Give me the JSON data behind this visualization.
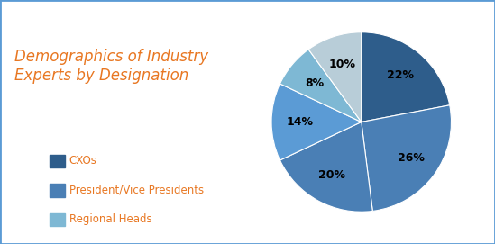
{
  "title": "Demographics of Industry\nExperts by Designation",
  "title_color": "#E87722",
  "slices": [
    22,
    26,
    20,
    14,
    8,
    10
  ],
  "labels": [
    "22%",
    "26%",
    "20%",
    "14%",
    "8%",
    "10%"
  ],
  "colors": [
    "#2E5D8B",
    "#4A7FB5",
    "#4A7FB5",
    "#5B9BD5",
    "#7EB8D4",
    "#B8CDD8"
  ],
  "legend_labels": [
    "CXOs",
    "President/Vice Presidents",
    "Regional Heads"
  ],
  "legend_colors": [
    "#2E5D8B",
    "#4A7FB5",
    "#7EB8D4"
  ],
  "legend_text_color": "#E87722",
  "background_color": "#FFFFFF",
  "border_color": "#5B9BD5",
  "startangle": 90,
  "label_fontsize": 9,
  "title_fontsize": 12
}
